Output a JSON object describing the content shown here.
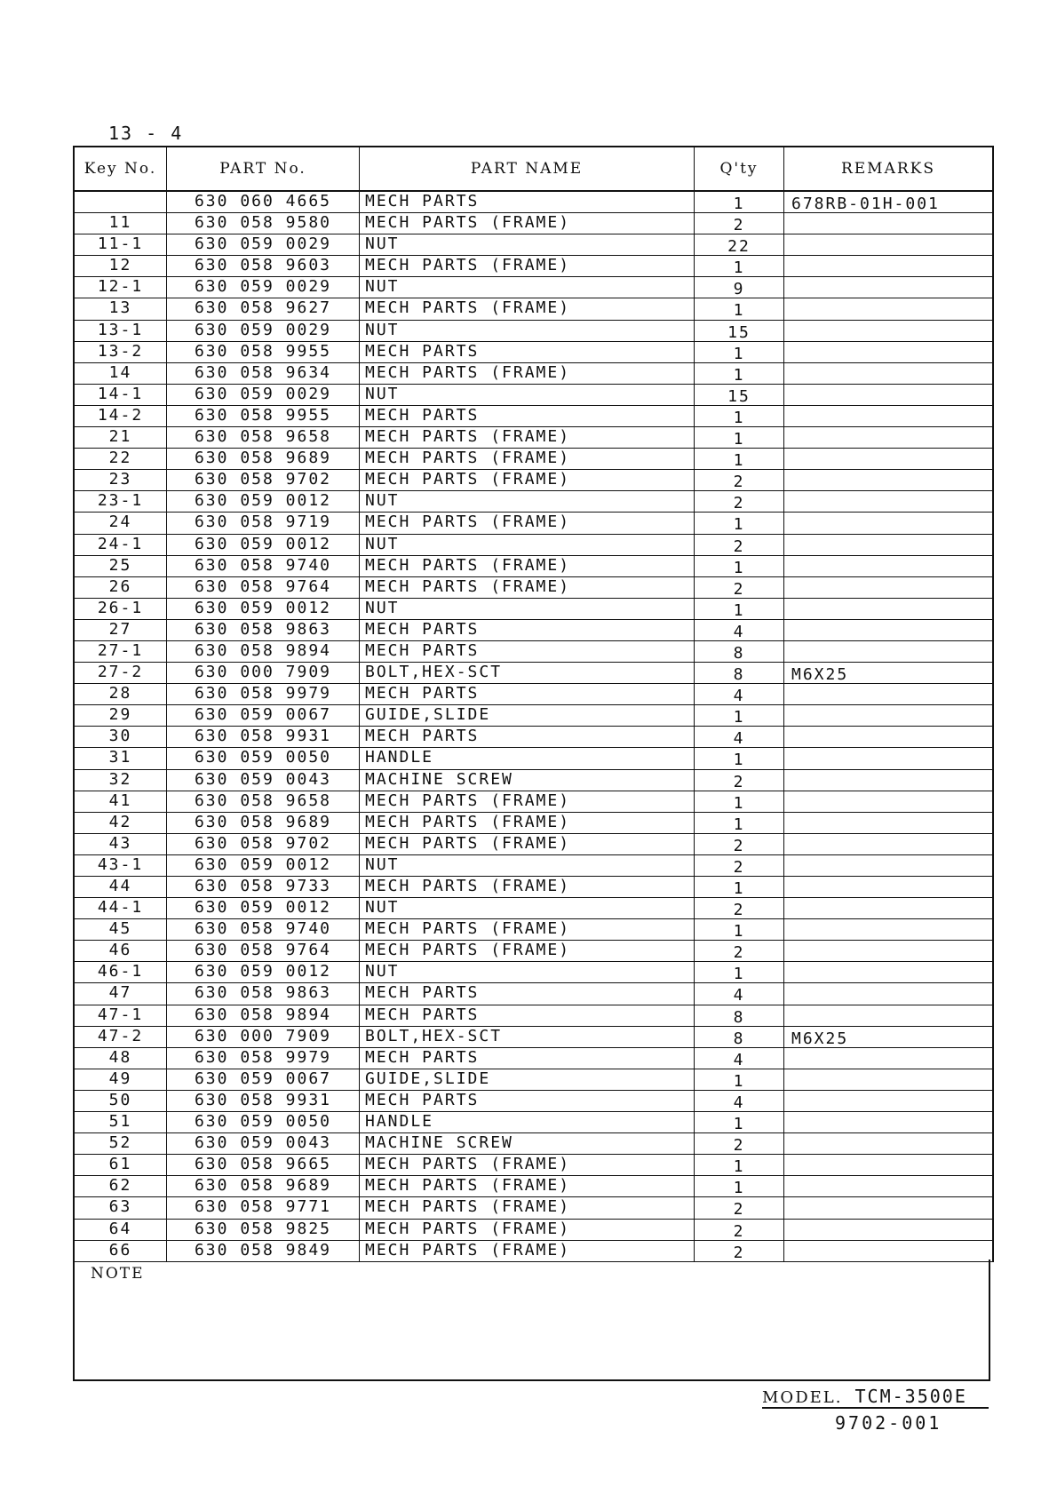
{
  "page_number": "13 - 4",
  "headers": {
    "key": "Key No.",
    "part_no": "PART No.",
    "name": "PART NAME",
    "qty": "Q'ty",
    "remarks": "REMARKS"
  },
  "rows": [
    [
      "",
      "630 060 4665",
      "MECH PARTS",
      "1",
      "678RB-01H-001"
    ],
    [
      "11",
      "630 058 9580",
      "MECH PARTS (FRAME)",
      "2",
      ""
    ],
    [
      "11-1",
      "630 059 0029",
      "NUT",
      "22",
      ""
    ],
    [
      "12",
      "630 058 9603",
      "MECH PARTS (FRAME)",
      "1",
      ""
    ],
    [
      "12-1",
      "630 059 0029",
      "NUT",
      "9",
      ""
    ],
    [
      "13",
      "630 058 9627",
      "MECH PARTS (FRAME)",
      "1",
      ""
    ],
    [
      "13-1",
      "630 059 0029",
      "NUT",
      "15",
      ""
    ],
    [
      "13-2",
      "630 058 9955",
      "MECH PARTS",
      "1",
      ""
    ],
    [
      "14",
      "630 058 9634",
      "MECH PARTS (FRAME)",
      "1",
      ""
    ],
    [
      "14-1",
      "630 059 0029",
      "NUT",
      "15",
      ""
    ],
    [
      "14-2",
      "630 058 9955",
      "MECH PARTS",
      "1",
      ""
    ],
    [
      "21",
      "630 058 9658",
      "MECH PARTS (FRAME)",
      "1",
      ""
    ],
    [
      "22",
      "630 058 9689",
      "MECH PARTS (FRAME)",
      "1",
      ""
    ],
    [
      "23",
      "630 058 9702",
      "MECH PARTS (FRAME)",
      "2",
      ""
    ],
    [
      "23-1",
      "630 059 0012",
      "NUT",
      "2",
      ""
    ],
    [
      "24",
      "630 058 9719",
      "MECH PARTS (FRAME)",
      "1",
      ""
    ],
    [
      "24-1",
      "630 059 0012",
      "NUT",
      "2",
      ""
    ],
    [
      "25",
      "630 058 9740",
      "MECH PARTS (FRAME)",
      "1",
      ""
    ],
    [
      "26",
      "630 058 9764",
      "MECH PARTS (FRAME)",
      "2",
      ""
    ],
    [
      "26-1",
      "630 059 0012",
      "NUT",
      "1",
      ""
    ],
    [
      "27",
      "630 058 9863",
      "MECH PARTS",
      "4",
      ""
    ],
    [
      "27-1",
      "630 058 9894",
      "MECH PARTS",
      "8",
      ""
    ],
    [
      "27-2",
      "630 000 7909",
      "BOLT,HEX-SCT",
      "8",
      "M6X25"
    ],
    [
      "28",
      "630 058 9979",
      "MECH PARTS",
      "4",
      ""
    ],
    [
      "29",
      "630 059 0067",
      "GUIDE,SLIDE",
      "1",
      ""
    ],
    [
      "30",
      "630 058 9931",
      "MECH PARTS",
      "4",
      ""
    ],
    [
      "31",
      "630 059 0050",
      "HANDLE",
      "1",
      ""
    ],
    [
      "32",
      "630 059 0043",
      "MACHINE SCREW",
      "2",
      ""
    ],
    [
      "41",
      "630 058 9658",
      "MECH PARTS (FRAME)",
      "1",
      ""
    ],
    [
      "42",
      "630 058 9689",
      "MECH PARTS (FRAME)",
      "1",
      ""
    ],
    [
      "43",
      "630 058 9702",
      "MECH PARTS (FRAME)",
      "2",
      ""
    ],
    [
      "43-1",
      "630 059 0012",
      "NUT",
      "2",
      ""
    ],
    [
      "44",
      "630 058 9733",
      "MECH PARTS (FRAME)",
      "1",
      ""
    ],
    [
      "44-1",
      "630 059 0012",
      "NUT",
      "2",
      ""
    ],
    [
      "45",
      "630 058 9740",
      "MECH PARTS (FRAME)",
      "1",
      ""
    ],
    [
      "46",
      "630 058 9764",
      "MECH PARTS (FRAME)",
      "2",
      ""
    ],
    [
      "46-1",
      "630 059 0012",
      "NUT",
      "1",
      ""
    ],
    [
      "47",
      "630 058 9863",
      "MECH PARTS",
      "4",
      ""
    ],
    [
      "47-1",
      "630 058 9894",
      "MECH PARTS",
      "8",
      ""
    ],
    [
      "47-2",
      "630 000 7909",
      "BOLT,HEX-SCT",
      "8",
      "M6X25"
    ],
    [
      "48",
      "630 058 9979",
      "MECH PARTS",
      "4",
      ""
    ],
    [
      "49",
      "630 059 0067",
      "GUIDE,SLIDE",
      "1",
      ""
    ],
    [
      "50",
      "630 058 9931",
      "MECH PARTS",
      "4",
      ""
    ],
    [
      "51",
      "630 059 0050",
      "HANDLE",
      "1",
      ""
    ],
    [
      "52",
      "630 059 0043",
      "MACHINE SCREW",
      "2",
      ""
    ],
    [
      "61",
      "630 058 9665",
      "MECH PARTS (FRAME)",
      "1",
      ""
    ],
    [
      "62",
      "630 058 9689",
      "MECH PARTS (FRAME)",
      "1",
      ""
    ],
    [
      "63",
      "630 058 9771",
      "MECH PARTS (FRAME)",
      "2",
      ""
    ],
    [
      "64",
      "630 058 9825",
      "MECH PARTS (FRAME)",
      "2",
      ""
    ],
    [
      "66",
      "630 058 9849",
      "MECH PARTS (FRAME)",
      "2",
      ""
    ]
  ],
  "note_label": "NOTE",
  "model_label": "MODEL.",
  "model": "TCM-3500E",
  "doc_number": "9702-001"
}
